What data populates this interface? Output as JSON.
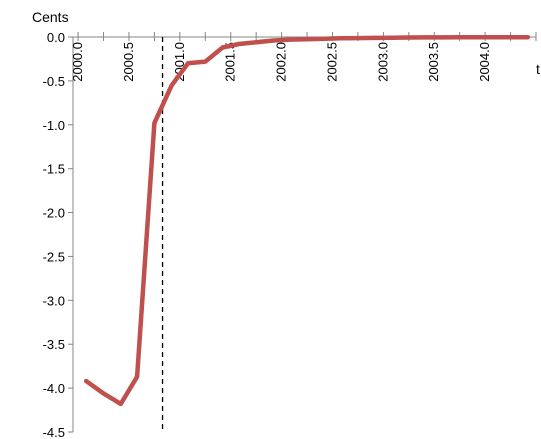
{
  "chart_data": {
    "type": "line",
    "ylabel": "Cents",
    "xlabel": "t",
    "xlim": [
      1999.95,
      2004.5
    ],
    "ylim": [
      -4.5,
      0.0
    ],
    "x_ticks": [
      2000.0,
      2000.5,
      2001.0,
      2001.5,
      2002.0,
      2002.5,
      2003.0,
      2003.5,
      2004.0
    ],
    "x_tick_labels": [
      "2000.0",
      "2000.5",
      "2001.0",
      "2001.5",
      "2002.0",
      "2002.5",
      "2003.0",
      "2003.5",
      "2004.0"
    ],
    "y_ticks": [
      0.0,
      -0.5,
      -1.0,
      -1.5,
      -2.0,
      -2.5,
      -3.0,
      -3.5,
      -4.0,
      -4.5
    ],
    "y_tick_labels": [
      "0.0",
      "-0.5",
      "-1.0",
      "-1.5",
      "-2.0",
      "-2.5",
      "-3.0",
      "-3.5",
      "-4.0",
      "-4.5"
    ],
    "vline_x": 2000.83,
    "grid": false,
    "series": [
      {
        "color": "#c0504d",
        "x": [
          2000.08,
          2000.25,
          2000.42,
          2000.58,
          2000.75,
          2000.92,
          2001.08,
          2001.25,
          2001.42,
          2001.58,
          2001.75,
          2001.92,
          2002.08,
          2002.25,
          2002.42,
          2002.58,
          2002.75,
          2002.92,
          2003.08,
          2003.25,
          2003.42,
          2003.58,
          2003.75,
          2003.92,
          2004.08,
          2004.25,
          2004.42
        ],
        "y": [
          -3.92,
          -4.06,
          -4.18,
          -3.87,
          -0.98,
          -0.55,
          -0.3,
          -0.28,
          -0.12,
          -0.08,
          -0.06,
          -0.04,
          -0.03,
          -0.025,
          -0.02,
          -0.015,
          -0.012,
          -0.01,
          -0.008,
          -0.006,
          -0.005,
          -0.004,
          -0.003,
          -0.003,
          -0.002,
          -0.002,
          -0.002
        ]
      }
    ]
  }
}
